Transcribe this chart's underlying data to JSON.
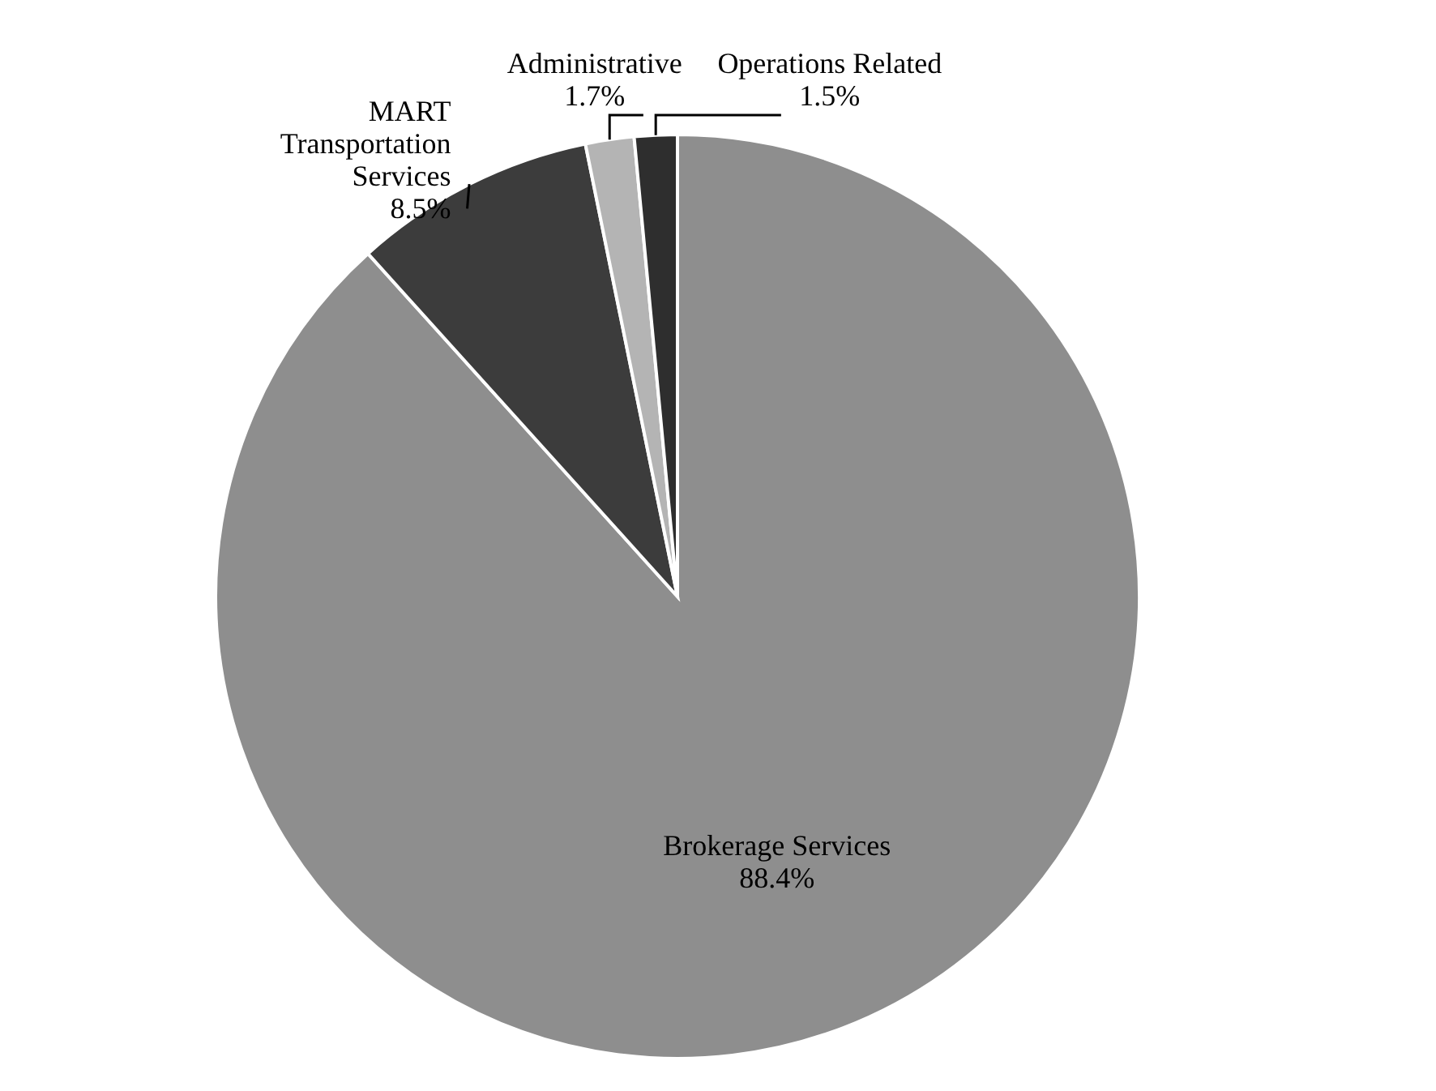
{
  "chart_data": {
    "type": "pie",
    "categories": [
      "Brokerage Services",
      "MART Transportation Services",
      "Administrative",
      "Operations Related"
    ],
    "values": [
      88.4,
      8.5,
      1.7,
      1.5
    ],
    "colors": [
      "#8e8e8e",
      "#3c3c3c",
      "#b4b4b4",
      "#2e2e2e"
    ],
    "value_labels": [
      "88.4%",
      "8.5%",
      "1.7%",
      "1.5%"
    ]
  }
}
